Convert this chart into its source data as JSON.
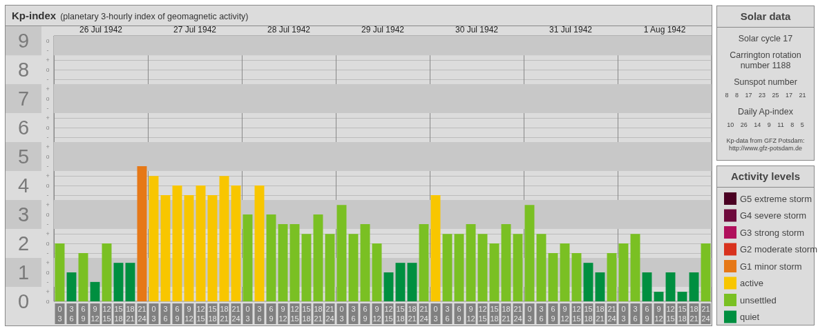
{
  "chart_data": {
    "type": "bar",
    "title": "Kp-index",
    "subtitle": "(planetary 3-hourly index of geomagnetic activity)",
    "legend_title": "Activity levels",
    "categories": [
      "0\n3",
      "3\n6",
      "6\n9",
      "9\n12",
      "12\n15",
      "15\n18",
      "18\n21",
      "21\n24",
      "0\n3",
      "3\n6",
      "6\n9",
      "9\n12",
      "12\n15",
      "15\n18",
      "18\n21",
      "21\n24",
      "0\n3",
      "3\n6",
      "6\n9",
      "9\n12",
      "12\n15",
      "15\n18",
      "18\n21",
      "21\n24",
      "0\n3",
      "3\n6",
      "6\n9",
      "9\n12",
      "12\n15",
      "15\n18",
      "18\n21",
      "21\n24",
      "0\n3",
      "3\n6",
      "6\n9",
      "9\n12",
      "12\n15",
      "15\n18",
      "18\n21",
      "21\n24",
      "0\n3",
      "3\n6",
      "6\n9",
      "9\n12",
      "12\n15",
      "15\n18",
      "18\n21",
      "21\n24",
      "0\n3",
      "3\n6",
      "6\n9",
      "9\n12",
      "12\n15",
      "15\n18",
      "18\n21",
      "21\n24"
    ],
    "series": [
      {
        "name": "G5 extreme storm",
        "color": "#4a0022",
        "values": [
          null,
          null,
          null,
          null,
          null,
          null,
          null,
          null,
          null,
          null,
          null,
          null,
          null,
          null,
          null,
          null,
          null,
          null,
          null,
          null,
          null,
          null,
          null,
          null,
          null,
          null,
          null,
          null,
          null,
          null,
          null,
          null,
          null,
          null,
          null,
          null,
          null,
          null,
          null,
          null,
          null,
          null,
          null,
          null,
          null,
          null,
          null,
          null,
          null,
          null,
          null,
          null,
          null,
          null,
          null,
          null
        ]
      },
      {
        "name": "G4 severe storm",
        "color": "#6e0a3c",
        "values": [
          null,
          null,
          null,
          null,
          null,
          null,
          null,
          null,
          null,
          null,
          null,
          null,
          null,
          null,
          null,
          null,
          null,
          null,
          null,
          null,
          null,
          null,
          null,
          null,
          null,
          null,
          null,
          null,
          null,
          null,
          null,
          null,
          null,
          null,
          null,
          null,
          null,
          null,
          null,
          null,
          null,
          null,
          null,
          null,
          null,
          null,
          null,
          null,
          null,
          null,
          null,
          null,
          null,
          null,
          null,
          null
        ]
      },
      {
        "name": "G3 strong storm",
        "color": "#b0105c",
        "values": [
          null,
          null,
          null,
          null,
          null,
          null,
          null,
          null,
          null,
          null,
          null,
          null,
          null,
          null,
          null,
          null,
          null,
          null,
          null,
          null,
          null,
          null,
          null,
          null,
          null,
          null,
          null,
          null,
          null,
          null,
          null,
          null,
          null,
          null,
          null,
          null,
          null,
          null,
          null,
          null,
          null,
          null,
          null,
          null,
          null,
          null,
          null,
          null,
          null,
          null,
          null,
          null,
          null,
          null,
          null,
          null
        ]
      },
      {
        "name": "G2 moderate storm",
        "color": "#d8321e",
        "values": [
          null,
          null,
          null,
          null,
          null,
          null,
          null,
          null,
          null,
          null,
          null,
          null,
          null,
          null,
          null,
          null,
          null,
          null,
          null,
          null,
          null,
          null,
          null,
          null,
          null,
          null,
          null,
          null,
          null,
          null,
          null,
          null,
          null,
          null,
          null,
          null,
          null,
          null,
          null,
          null,
          null,
          null,
          null,
          null,
          null,
          null,
          null,
          null,
          null,
          null,
          null,
          null,
          null,
          null,
          null,
          null
        ]
      },
      {
        "name": "G1 minor storm",
        "color": "#e67817",
        "values": [
          null,
          null,
          null,
          null,
          null,
          null,
          null,
          4.67,
          null,
          null,
          null,
          null,
          null,
          null,
          null,
          null,
          null,
          null,
          null,
          null,
          null,
          null,
          null,
          null,
          null,
          null,
          null,
          null,
          null,
          null,
          null,
          null,
          null,
          null,
          null,
          null,
          null,
          null,
          null,
          null,
          null,
          null,
          null,
          null,
          null,
          null,
          null,
          null,
          null,
          null,
          null,
          null,
          null,
          null,
          null,
          null
        ]
      },
      {
        "name": "active",
        "color": "#f8c600",
        "values": [
          null,
          null,
          null,
          null,
          null,
          null,
          null,
          null,
          4.33,
          3.67,
          4,
          3.67,
          4,
          3.67,
          4.33,
          4,
          null,
          4,
          null,
          null,
          null,
          null,
          null,
          null,
          null,
          null,
          null,
          null,
          null,
          null,
          null,
          null,
          3.67,
          null,
          null,
          null,
          null,
          null,
          null,
          null,
          null,
          null,
          null,
          null,
          null,
          null,
          null,
          null,
          null,
          null,
          null,
          null,
          null,
          null,
          null,
          null
        ]
      },
      {
        "name": "unsettled",
        "color": "#7ac023",
        "values": [
          2,
          null,
          1.67,
          null,
          2,
          null,
          null,
          null,
          null,
          null,
          null,
          null,
          null,
          null,
          null,
          null,
          3,
          null,
          3,
          2.67,
          2.67,
          2.33,
          3,
          2.33,
          3.33,
          2.33,
          2.67,
          2,
          null,
          null,
          null,
          2.67,
          null,
          2.33,
          2.33,
          2.67,
          2.33,
          2,
          2.67,
          2.33,
          3.33,
          2.33,
          1.67,
          2,
          1.67,
          null,
          null,
          1.67,
          2,
          2.33,
          null,
          null,
          null,
          null,
          null,
          2
        ]
      },
      {
        "name": "quiet",
        "color": "#008f40",
        "values": [
          null,
          1,
          null,
          0.67,
          null,
          1.33,
          1.33,
          null,
          null,
          null,
          null,
          null,
          null,
          null,
          null,
          null,
          null,
          null,
          null,
          null,
          null,
          null,
          null,
          null,
          null,
          null,
          null,
          null,
          1,
          1.33,
          1.33,
          null,
          null,
          null,
          null,
          null,
          null,
          null,
          null,
          null,
          null,
          null,
          null,
          null,
          null,
          1.33,
          1,
          null,
          null,
          null,
          1,
          0.33,
          1,
          0.33,
          1,
          null
        ]
      }
    ],
    "ylim": [
      0,
      9.17
    ],
    "yticks": [
      0,
      1,
      2,
      3,
      4,
      5,
      6,
      7,
      8,
      9
    ],
    "y2_categories": [
      "o",
      "-",
      "+",
      "o",
      "-",
      "+",
      "o",
      "-",
      "+",
      "o",
      "-",
      "+",
      "o",
      "-",
      "+",
      "o",
      "-",
      "+",
      "o",
      "-",
      "+",
      "o",
      "-",
      "+",
      "o",
      "-",
      "+",
      "o"
    ],
    "x2lim": [
      "1942-07-26",
      "1942-08-02"
    ],
    "x2ticks": [
      {
        "value": "1942-07-26",
        "label": null
      },
      {
        "value": "1942-07-26T12:00",
        "label": "26 Jul 1942"
      },
      {
        "value": "1942-07-27",
        "label": null
      },
      {
        "value": "1942-07-27T12:00",
        "label": "27 Jul 1942"
      },
      {
        "value": "1942-07-28",
        "label": null
      },
      {
        "value": "1942-07-28T12:00",
        "label": "28 Jul 1942"
      },
      {
        "value": "1942-07-29",
        "label": null
      },
      {
        "value": "1942-07-29T12:00",
        "label": "29 Jul 1942"
      },
      {
        "value": "1942-07-30",
        "label": null
      },
      {
        "value": "1942-07-30T12:00",
        "label": "30 Jul 1942"
      },
      {
        "value": "1942-07-31",
        "label": null
      },
      {
        "value": "1942-07-31T12:00",
        "label": "31 Jul 1942"
      },
      {
        "value": "1942-08-01",
        "label": null
      },
      {
        "value": "1942-08-01T12:00",
        "label": "1 Aug 1942"
      },
      {
        "value": "1942-08-02",
        "label": null
      }
    ],
    "bands": [
      {
        "axis": "y",
        "from": 0.5,
        "to": 1.5,
        "color": "#c8c8c8"
      },
      {
        "axis": "y",
        "from": 2.5,
        "to": 3.5,
        "color": "#c8c8c8"
      },
      {
        "axis": "y",
        "from": 4.5,
        "to": 5.5,
        "color": "#c8c8c8"
      },
      {
        "axis": "y",
        "from": 6.5,
        "to": 7.5,
        "color": "#c8c8c8"
      },
      {
        "axis": "y",
        "from": 8.5,
        "to": 9.17,
        "color": "#c8c8c8"
      }
    ],
    "grid": true,
    "legend": "right",
    "annotations": [
      "Solar data",
      "Solar cycle 17",
      "Carrington rotation number 1188",
      "Sunspot number",
      "8 8 17 23 25 17 21",
      "Daily Ap-index",
      "10 26 14 9 11 8 5",
      "Kp-data from GFZ Potsdam: http://www.gfz-potsdam.de"
    ]
  }
}
